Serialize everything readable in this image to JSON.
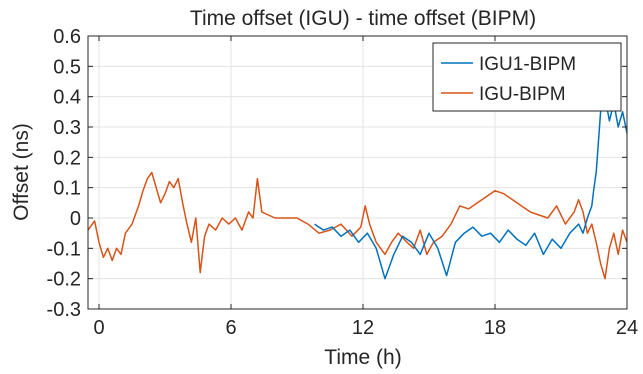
{
  "chart_data": {
    "type": "line",
    "title": "Time offset (IGU) - time offset (BIPM)",
    "xlabel": "Time (h)",
    "ylabel": "Offset (ns)",
    "xlim": [
      -0.5,
      24
    ],
    "ylim": [
      -0.3,
      0.6
    ],
    "xticks": [
      0,
      6,
      12,
      18,
      24
    ],
    "xtick_labels": [
      "0",
      "6",
      "12",
      "18",
      "24"
    ],
    "yticks": [
      -0.3,
      -0.2,
      -0.1,
      0,
      0.1,
      0.2,
      0.3,
      0.4,
      0.5,
      0.6
    ],
    "ytick_labels": [
      "-0.3",
      "-0.2",
      "-0.1",
      "0",
      "0.1",
      "0.2",
      "0.3",
      "0.4",
      "0.5",
      "0.6"
    ],
    "grid": true,
    "legend_position": "top-right",
    "colors": {
      "IGU1-BIPM": "#0072BD",
      "IGU-BIPM": "#D95319",
      "grid": "#e3e3e3",
      "axis": "#262626"
    },
    "series": [
      {
        "name": "IGU1-BIPM",
        "color": "#0072BD",
        "x": [
          9.8,
          10.2,
          10.6,
          11.0,
          11.4,
          11.8,
          12.2,
          12.6,
          13.0,
          13.4,
          13.8,
          14.2,
          14.6,
          15.0,
          15.4,
          15.8,
          16.2,
          16.6,
          17.0,
          17.4,
          17.8,
          18.2,
          18.6,
          19.0,
          19.4,
          19.8,
          20.2,
          20.6,
          21.0,
          21.4,
          21.8,
          22.0,
          22.2,
          22.4,
          22.5,
          22.6,
          22.7,
          22.8,
          23.0,
          23.2,
          23.4,
          23.6,
          23.8,
          24.0
        ],
        "y": [
          -0.02,
          -0.04,
          -0.03,
          -0.06,
          -0.04,
          -0.08,
          -0.05,
          -0.1,
          -0.2,
          -0.12,
          -0.06,
          -0.08,
          -0.12,
          -0.05,
          -0.1,
          -0.19,
          -0.08,
          -0.05,
          -0.03,
          -0.06,
          -0.05,
          -0.08,
          -0.04,
          -0.07,
          -0.09,
          -0.05,
          -0.12,
          -0.07,
          -0.1,
          -0.05,
          -0.02,
          -0.05,
          0.0,
          0.04,
          0.1,
          0.15,
          0.25,
          0.35,
          0.4,
          0.32,
          0.38,
          0.3,
          0.35,
          0.28
        ]
      },
      {
        "name": "IGU-BIPM",
        "color": "#D95319",
        "x": [
          -0.5,
          -0.2,
          0.0,
          0.2,
          0.4,
          0.6,
          0.8,
          1.0,
          1.2,
          1.5,
          1.8,
          2.0,
          2.2,
          2.4,
          2.6,
          2.8,
          3.0,
          3.2,
          3.4,
          3.6,
          3.8,
          4.0,
          4.2,
          4.4,
          4.6,
          4.8,
          5.0,
          5.3,
          5.6,
          5.9,
          6.2,
          6.5,
          6.8,
          7.0,
          7.2,
          7.4,
          7.7,
          8.0,
          8.5,
          9.0,
          9.5,
          10.0,
          10.5,
          11.0,
          11.5,
          11.9,
          12.1,
          12.3,
          12.6,
          13.0,
          13.3,
          13.6,
          14.0,
          14.3,
          14.6,
          14.9,
          15.2,
          15.6,
          16.0,
          16.4,
          16.8,
          17.2,
          17.6,
          18.0,
          18.4,
          18.8,
          19.2,
          19.6,
          20.0,
          20.4,
          20.8,
          21.2,
          21.6,
          21.8,
          22.0,
          22.2,
          22.4,
          22.6,
          22.8,
          23.0,
          23.2,
          23.4,
          23.6,
          23.8,
          24.0
        ],
        "y": [
          -0.04,
          -0.01,
          -0.08,
          -0.13,
          -0.1,
          -0.14,
          -0.1,
          -0.12,
          -0.05,
          -0.02,
          0.04,
          0.09,
          0.13,
          0.15,
          0.1,
          0.05,
          0.08,
          0.12,
          0.1,
          0.13,
          0.05,
          -0.02,
          -0.08,
          0.0,
          -0.18,
          -0.06,
          -0.02,
          -0.04,
          0.0,
          -0.02,
          0.0,
          -0.04,
          0.02,
          0.0,
          0.13,
          0.02,
          0.01,
          0.0,
          0.0,
          0.0,
          -0.02,
          -0.05,
          -0.04,
          -0.02,
          -0.06,
          -0.03,
          0.04,
          -0.02,
          -0.08,
          -0.12,
          -0.08,
          -0.05,
          -0.08,
          -0.1,
          -0.04,
          -0.12,
          -0.08,
          -0.06,
          -0.02,
          0.04,
          0.03,
          0.05,
          0.07,
          0.09,
          0.08,
          0.06,
          0.04,
          0.02,
          0.01,
          0.0,
          0.04,
          -0.02,
          0.02,
          0.06,
          0.02,
          -0.05,
          -0.02,
          -0.08,
          -0.15,
          -0.2,
          -0.1,
          -0.05,
          -0.12,
          -0.04,
          -0.08
        ]
      }
    ]
  }
}
